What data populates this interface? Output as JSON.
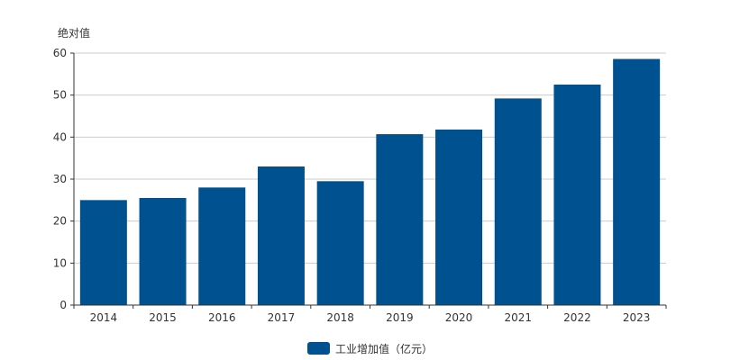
{
  "chart_data": {
    "type": "bar",
    "ylabel": "绝对值",
    "categories": [
      "2014",
      "2015",
      "2016",
      "2017",
      "2018",
      "2019",
      "2020",
      "2021",
      "2022",
      "2023"
    ],
    "series": [
      {
        "name": "工业增加值（亿元）",
        "color": "#00518f",
        "values": [
          25.0,
          25.5,
          28.0,
          33.0,
          29.5,
          40.7,
          41.8,
          49.2,
          52.5,
          58.6
        ]
      }
    ],
    "yticks": [
      0,
      10,
      20,
      30,
      40,
      50,
      60
    ],
    "ylim": [
      0,
      60
    ],
    "grid": true,
    "legend_position": "bottom-center"
  }
}
